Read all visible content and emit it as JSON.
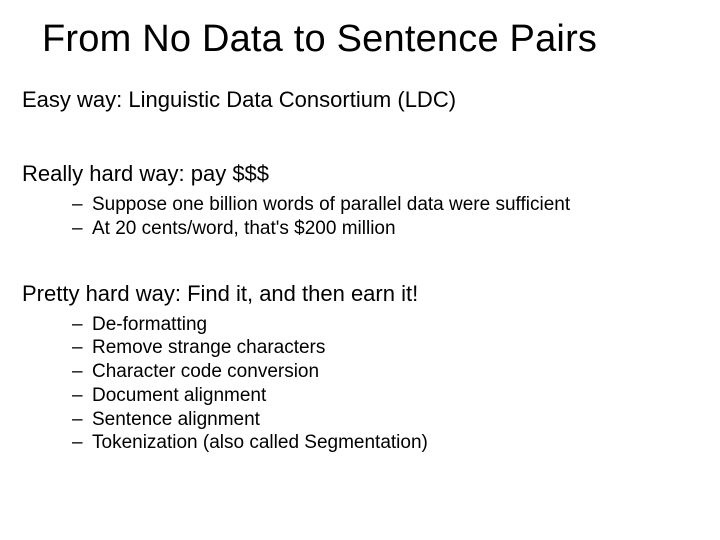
{
  "title": "From No Data to Sentence Pairs",
  "sections": {
    "easy": "Easy way: Linguistic Data Consortium (LDC)",
    "hard": "Really hard way:  pay $$$",
    "hard_items": [
      "Suppose one billion words of parallel data were sufficient",
      "At 20 cents/word, that's $200 million"
    ],
    "pretty": "Pretty hard way: Find it, and then earn it!",
    "pretty_items": [
      "De-formatting",
      "Remove strange characters",
      "Character code conversion",
      "Document alignment",
      "Sentence alignment",
      "Tokenization (also called Segmentation)"
    ]
  },
  "dash": "–"
}
